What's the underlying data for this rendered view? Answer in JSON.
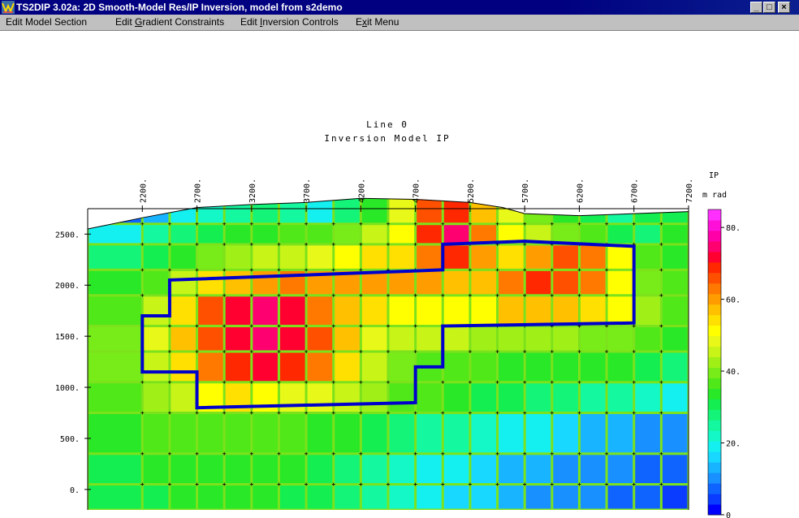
{
  "window": {
    "title": "TS2DIP 3.02a: 2D Smooth-Model Res/IP Inversion, model from s2demo",
    "buttons": {
      "minimize": "_",
      "maximize": "□",
      "close": "×"
    }
  },
  "menu": {
    "items": [
      {
        "pre": "Edit Model Section",
        "u": "",
        "post": ""
      },
      {
        "pre": "Edit ",
        "u": "G",
        "post": "radient Constraints"
      },
      {
        "pre": "Edit ",
        "u": "I",
        "post": "nversion Controls"
      },
      {
        "pre": "E",
        "u": "x",
        "post": "it Menu"
      }
    ]
  },
  "chart_data": {
    "type": "heatmap",
    "title": "Line 0",
    "subtitle": "Inversion Model IP",
    "x_ticks": [
      "2200.",
      "2700.",
      "3200.",
      "3700.",
      "4200.",
      "4700.",
      "5200.",
      "5700.",
      "6200.",
      "6700.",
      "7200."
    ],
    "x_tick_values": [
      2200,
      2700,
      3200,
      3700,
      4200,
      4700,
      5200,
      5700,
      6200,
      6700,
      7200
    ],
    "y_ticks": [
      "0.",
      "500.",
      "1000.",
      "1500.",
      "2000.",
      "2500."
    ],
    "y_tick_values": [
      0,
      500,
      1000,
      1500,
      2000,
      2500
    ],
    "xlim": [
      1700,
      7200
    ],
    "ylim": [
      -200,
      2900
    ],
    "colorbar": {
      "label": [
        "IP",
        "m rad"
      ],
      "ticks": [
        "0",
        "20.",
        "40.",
        "60.",
        "80."
      ],
      "tick_values": [
        0,
        20,
        40,
        60,
        80
      ],
      "range": [
        0,
        85
      ],
      "colors": [
        "#0000ff",
        "#0a3cff",
        "#0f64ff",
        "#1890ff",
        "#18b4ff",
        "#18d8ff",
        "#14f0f0",
        "#14f8c8",
        "#14f8a0",
        "#14f478",
        "#14ee50",
        "#28e828",
        "#50e818",
        "#78ec18",
        "#a0f018",
        "#c8f418",
        "#e8f818",
        "#ffff00",
        "#ffe000",
        "#ffc000",
        "#ff9c00",
        "#ff7800",
        "#ff5000",
        "#ff2800",
        "#ff0030",
        "#ff0070",
        "#ff00a8",
        "#ff10d8",
        "#ff30ff"
      ]
    },
    "surface": [
      [
        1700,
        2550
      ],
      [
        2200,
        2660
      ],
      [
        2700,
        2760
      ],
      [
        3200,
        2790
      ],
      [
        3700,
        2810
      ],
      [
        4200,
        2850
      ],
      [
        4700,
        2840
      ],
      [
        5200,
        2810
      ],
      [
        5500,
        2760
      ],
      [
        5700,
        2700
      ],
      [
        6200,
        2680
      ],
      [
        6700,
        2700
      ],
      [
        7200,
        2720
      ]
    ],
    "column_edges": [
      1700,
      2200,
      2450,
      2700,
      2950,
      3200,
      3450,
      3700,
      3950,
      4200,
      4450,
      4700,
      4950,
      5200,
      5450,
      5700,
      5950,
      6200,
      6450,
      6700,
      6950,
      7200
    ],
    "row_edges": [
      -200,
      50,
      350,
      750,
      1050,
      1350,
      1600,
      1900,
      2150,
      2400,
      2600,
      2900
    ],
    "values": [
      [
        30,
        32,
        33,
        34,
        34,
        33,
        32,
        30,
        27,
        24,
        21,
        19,
        17,
        15,
        13,
        11,
        10,
        9,
        8,
        7,
        5
      ],
      [
        30,
        33,
        34,
        35,
        35,
        34,
        33,
        31,
        28,
        25,
        22,
        20,
        18,
        16,
        14,
        12,
        11,
        10,
        9,
        7,
        6
      ],
      [
        33,
        36,
        37,
        38,
        38,
        37,
        36,
        35,
        33,
        30,
        28,
        26,
        24,
        22,
        20,
        18,
        16,
        14,
        12,
        10,
        9
      ],
      [
        38,
        42,
        45,
        52,
        54,
        52,
        48,
        47,
        45,
        42,
        38,
        36,
        34,
        32,
        30,
        28,
        27,
        26,
        24,
        22,
        19
      ],
      [
        41,
        46,
        54,
        63,
        68,
        71,
        68,
        63,
        55,
        44,
        40,
        38,
        37,
        36,
        35,
        34,
        35,
        35,
        33,
        30,
        28
      ],
      [
        40,
        47,
        56,
        66,
        72,
        76,
        73,
        66,
        57,
        48,
        46,
        45,
        44,
        43,
        43,
        43,
        42,
        41,
        40,
        37,
        33
      ],
      [
        38,
        44,
        54,
        65,
        71,
        74,
        72,
        64,
        56,
        53,
        52,
        51,
        51,
        52,
        57,
        58,
        56,
        55,
        50,
        42,
        38
      ],
      [
        34,
        38,
        44,
        53,
        58,
        61,
        62,
        60,
        59,
        59,
        60,
        61,
        58,
        57,
        63,
        68,
        67,
        62,
        52,
        40,
        36
      ],
      [
        28,
        30,
        35,
        40,
        42,
        44,
        46,
        48,
        50,
        53,
        55,
        64,
        68,
        60,
        53,
        60,
        67,
        64,
        52,
        38,
        34
      ],
      [
        20,
        24,
        28,
        31,
        33,
        35,
        36,
        38,
        40,
        44,
        52,
        68,
        74,
        63,
        50,
        44,
        40,
        36,
        30,
        28,
        34
      ],
      [
        8,
        13,
        18,
        22,
        25,
        27,
        24,
        20,
        28,
        35,
        48,
        66,
        70,
        58,
        48,
        40,
        34,
        30,
        26,
        30,
        32
      ]
    ],
    "target_polygon": [
      [
        2200,
        1150
      ],
      [
        2200,
        1700
      ],
      [
        2450,
        1700
      ],
      [
        2450,
        2050
      ],
      [
        4950,
        2150
      ],
      [
        4950,
        2400
      ],
      [
        5700,
        2430
      ],
      [
        6700,
        2380
      ],
      [
        6700,
        1630
      ],
      [
        4950,
        1600
      ],
      [
        4950,
        1200
      ],
      [
        4700,
        1200
      ],
      [
        4700,
        850
      ],
      [
        2700,
        800
      ],
      [
        2700,
        1150
      ]
    ],
    "target_color": "#0000cc"
  }
}
